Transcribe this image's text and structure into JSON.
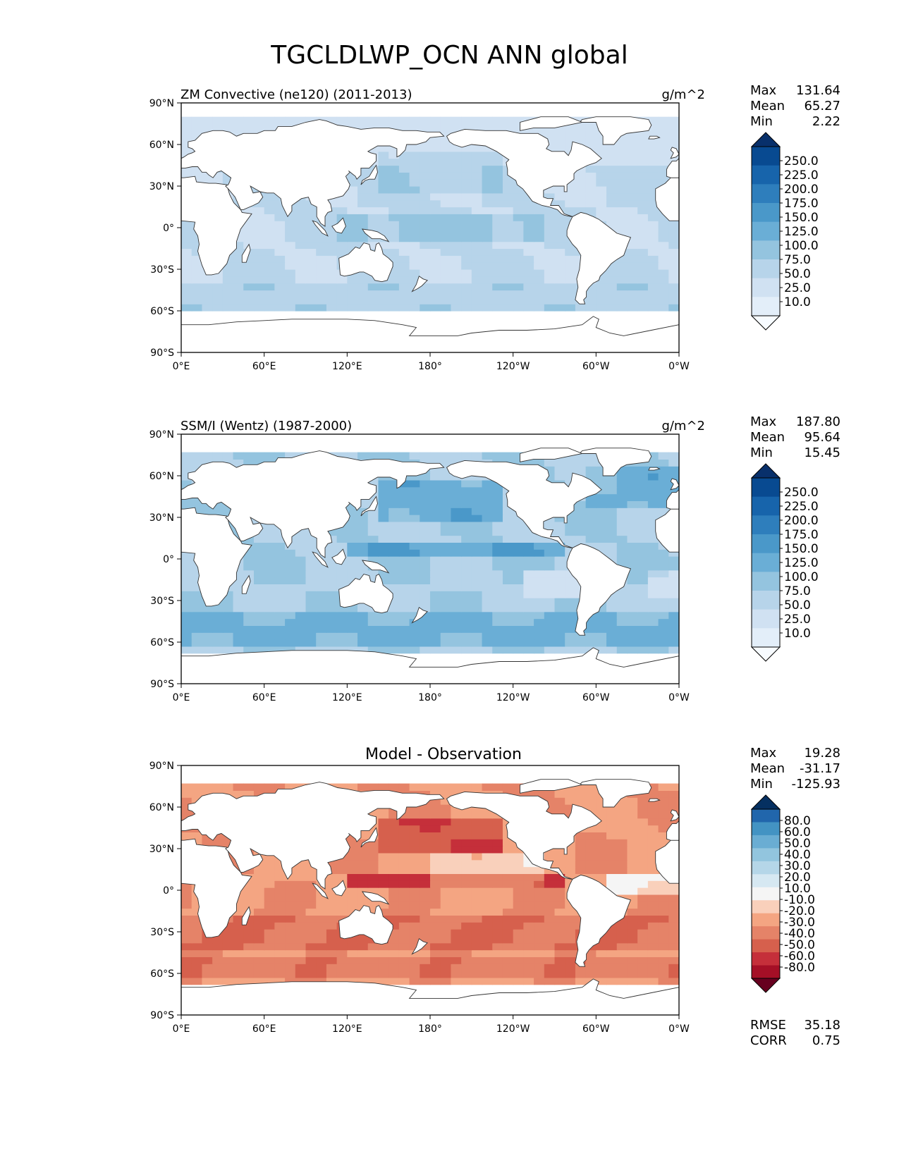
{
  "title": "TGCLDLWP_OCN ANN global",
  "axes": {
    "lat_ticks": [
      "90°N",
      "60°N",
      "30°N",
      "0°",
      "30°S",
      "60°S",
      "90°S"
    ],
    "lon_ticks": [
      "0°E",
      "60°E",
      "120°E",
      "180°",
      "120°W",
      "60°W",
      "0°W"
    ]
  },
  "colors": {
    "blues": [
      "#f7fbff",
      "#e3eef9",
      "#d0e1f2",
      "#b7d4ea",
      "#94c4df",
      "#6aaed6",
      "#4a98c9",
      "#2e7ebc",
      "#1764ab",
      "#084a91",
      "#08306b"
    ],
    "diverging": [
      "#67001f",
      "#a50f26",
      "#c52f3a",
      "#d6604d",
      "#e58368",
      "#f4a582",
      "#f9d0bb",
      "#f5f5f5",
      "#d6e8f2",
      "#b5d6e8",
      "#92c5de",
      "#6aadd3",
      "#4393c3",
      "#2166ac",
      "#053061"
    ]
  },
  "chart_data": [
    {
      "type": "heatmap",
      "title": "ZM Convective (ne120) (2011-2013)",
      "units": "g/m^2",
      "stats": {
        "max_label": "Max",
        "max": "131.64",
        "mean_label": "Mean",
        "mean": "65.27",
        "min_label": "Min",
        "min": "2.22"
      },
      "colorbar": {
        "levels": [
          "250.0",
          "225.0",
          "200.0",
          "175.0",
          "150.0",
          "125.0",
          "100.0",
          "75.0",
          "50.0",
          "25.0",
          "10.0"
        ],
        "extend": "both"
      },
      "lat_range": [
        -90,
        90
      ],
      "lon_range": [
        0,
        360
      ]
    },
    {
      "type": "heatmap",
      "title": "SSM/I (Wentz) (1987-2000)",
      "units": "g/m^2",
      "stats": {
        "max_label": "Max",
        "max": "187.80",
        "mean_label": "Mean",
        "mean": "95.64",
        "min_label": "Min",
        "min": "15.45"
      },
      "colorbar": {
        "levels": [
          "250.0",
          "225.0",
          "200.0",
          "175.0",
          "150.0",
          "125.0",
          "100.0",
          "75.0",
          "50.0",
          "25.0",
          "10.0"
        ],
        "extend": "both"
      },
      "lat_range": [
        -90,
        90
      ],
      "lon_range": [
        0,
        360
      ]
    },
    {
      "type": "heatmap",
      "title": "Model - Observation",
      "units": "",
      "stats": {
        "max_label": "Max",
        "max": "19.28",
        "mean_label": "Mean",
        "mean": "-31.17",
        "min_label": "Min",
        "min": "-125.93",
        "rmse_label": "RMSE",
        "rmse": "35.18",
        "corr_label": "CORR",
        "corr": "0.75"
      },
      "colorbar": {
        "levels": [
          "80.0",
          "60.0",
          "50.0",
          "40.0",
          "30.0",
          "20.0",
          "10.0",
          "-10.0",
          "-20.0",
          "-30.0",
          "-40.0",
          "-50.0",
          "-60.0",
          "-80.0"
        ],
        "extend": "both"
      },
      "lat_range": [
        -90,
        90
      ],
      "lon_range": [
        0,
        360
      ]
    }
  ]
}
